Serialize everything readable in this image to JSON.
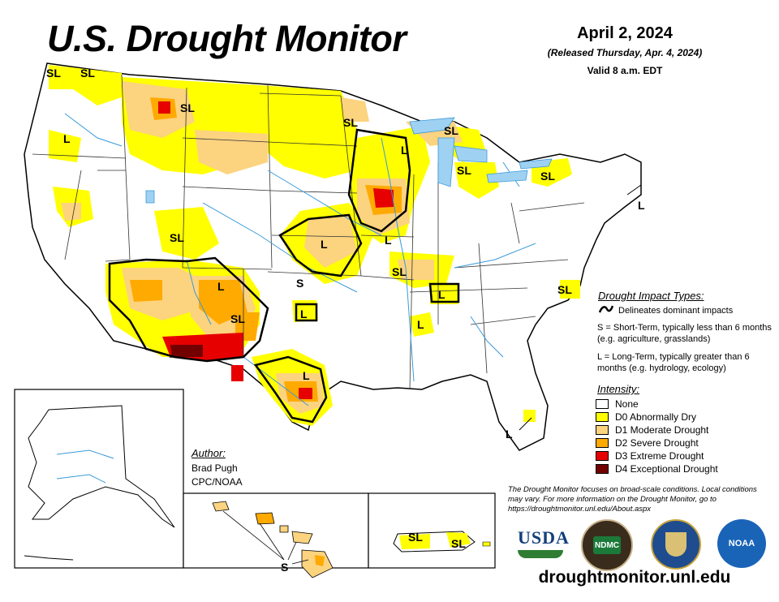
{
  "header": {
    "title": "U.S. Drought Monitor",
    "date": "April 2, 2024",
    "released": "(Released Thursday, Apr. 4, 2024)",
    "valid": "Valid 8 a.m. EDT"
  },
  "impact_types": {
    "title": "Drought Impact Types:",
    "delineates": "Delineates dominant impacts",
    "short_term": "S = Short-Term, typically less than 6 months (e.g. agriculture, grasslands)",
    "long_term": "L = Long-Term, typically greater than 6 months (e.g. hydrology, ecology)"
  },
  "intensity": {
    "title": "Intensity:",
    "levels": [
      {
        "label": "None",
        "color": "#ffffff"
      },
      {
        "label": "D0 Abnormally Dry",
        "color": "#ffff00"
      },
      {
        "label": "D1 Moderate Drought",
        "color": "#fcd37f"
      },
      {
        "label": "D2 Severe Drought",
        "color": "#ffaa00"
      },
      {
        "label": "D3 Extreme Drought",
        "color": "#e60000"
      },
      {
        "label": "D4 Exceptional Drought",
        "color": "#730000"
      }
    ]
  },
  "author": {
    "title": "Author:",
    "name": "Brad Pugh",
    "org": "CPC/NOAA"
  },
  "note": "The Drought Monitor focuses on broad-scale conditions. Local conditions may vary. For more information on the Drought Monitor, go to https://droughtmonitor.unl.edu/About.aspx",
  "website": "droughtmonitor.unl.edu",
  "logos": {
    "usda": "USDA",
    "ndmc": "NDMC",
    "noaa": "NOAA",
    "ndmc_ring": "NATIONAL DROUGHT MITIGATION CENTER",
    "ndmc_bottom": "UNIVERSITY OF NEBRASKA",
    "doc_ring": "DEPARTMENT OF COMMERCE",
    "doc_bottom": "UNITED STATES OF AMERICA"
  },
  "map_labels": {
    "sl": "SL",
    "l": "L",
    "s": "S"
  },
  "colors": {
    "d0": "#ffff00",
    "d1": "#fcd37f",
    "d2": "#ffaa00",
    "d3": "#e60000",
    "d4": "#730000",
    "water": "#3a9ad9",
    "border": "#000000"
  }
}
